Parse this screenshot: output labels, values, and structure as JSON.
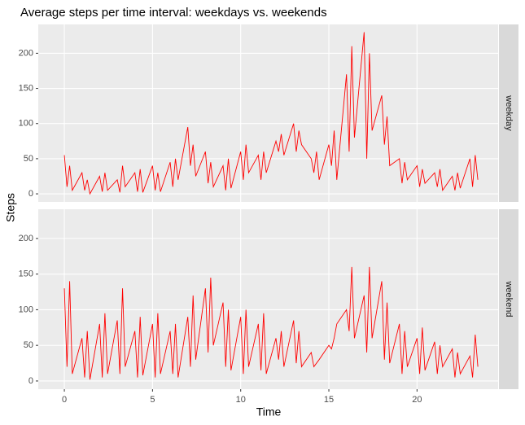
{
  "chart_data": {
    "type": "line",
    "title": "Average steps per time interval: weekdays vs. weekends",
    "x_label": "Time",
    "y_label": "Steps",
    "xlim": [
      -1.48,
      24.6
    ],
    "xticks": [
      0,
      5,
      10,
      15,
      20
    ],
    "ylim": [
      -11.5,
      241
    ],
    "yticks": [
      0,
      50,
      100,
      150,
      200
    ],
    "grid": true,
    "x": [
      0,
      0.15,
      0.3,
      0.45,
      1,
      1.15,
      1.3,
      1.45,
      2,
      2.15,
      2.3,
      2.45,
      3,
      3.15,
      3.3,
      3.45,
      4,
      4.15,
      4.3,
      4.45,
      5,
      5.15,
      5.3,
      5.45,
      6,
      6.15,
      6.3,
      6.45,
      7,
      7.15,
      7.3,
      7.45,
      8,
      8.15,
      8.3,
      8.45,
      9,
      9.15,
      9.3,
      9.45,
      10,
      10.15,
      10.3,
      10.45,
      11,
      11.15,
      11.3,
      11.45,
      12,
      12.15,
      12.3,
      12.45,
      13,
      13.15,
      13.3,
      13.45,
      14,
      14.15,
      14.3,
      14.45,
      15,
      15.15,
      15.3,
      15.45,
      16,
      16.15,
      16.3,
      16.45,
      17,
      17.15,
      17.3,
      17.45,
      18,
      18.15,
      18.3,
      18.45,
      19,
      19.15,
      19.3,
      19.45,
      20,
      20.15,
      20.3,
      20.45,
      21,
      21.15,
      21.3,
      21.45,
      22,
      22.15,
      22.3,
      22.45,
      23,
      23.15,
      23.3,
      23.45
    ],
    "series": [
      {
        "name": "weekday",
        "color": "#ff0000",
        "values": [
          55,
          10,
          40,
          5,
          30,
          5,
          20,
          0,
          25,
          3,
          30,
          5,
          20,
          2,
          40,
          10,
          30,
          3,
          35,
          2,
          40,
          5,
          30,
          3,
          45,
          10,
          50,
          20,
          95,
          40,
          70,
          25,
          60,
          15,
          45,
          10,
          40,
          5,
          50,
          8,
          60,
          20,
          70,
          30,
          55,
          20,
          60,
          30,
          75,
          60,
          85,
          55,
          100,
          60,
          90,
          70,
          50,
          30,
          60,
          20,
          70,
          40,
          90,
          20,
          170,
          60,
          210,
          80,
          230,
          50,
          200,
          90,
          140,
          70,
          110,
          40,
          50,
          15,
          45,
          20,
          40,
          10,
          35,
          15,
          30,
          10,
          35,
          5,
          25,
          5,
          30,
          8,
          50,
          10,
          55,
          20
        ]
      },
      {
        "name": "weekend",
        "color": "#ff0000",
        "values": [
          130,
          20,
          140,
          10,
          60,
          5,
          70,
          2,
          80,
          5,
          95,
          10,
          85,
          10,
          130,
          20,
          70,
          5,
          90,
          8,
          80,
          5,
          95,
          10,
          70,
          10,
          80,
          5,
          90,
          20,
          120,
          30,
          130,
          40,
          145,
          50,
          110,
          20,
          100,
          15,
          90,
          10,
          100,
          20,
          80,
          15,
          95,
          10,
          60,
          30,
          70,
          20,
          85,
          25,
          70,
          20,
          40,
          20,
          25,
          30,
          50,
          45,
          60,
          80,
          100,
          70,
          160,
          60,
          120,
          40,
          160,
          60,
          140,
          30,
          110,
          25,
          80,
          10,
          70,
          20,
          60,
          10,
          75,
          15,
          55,
          10,
          50,
          20,
          45,
          5,
          40,
          10,
          35,
          5,
          65,
          20
        ]
      }
    ]
  }
}
